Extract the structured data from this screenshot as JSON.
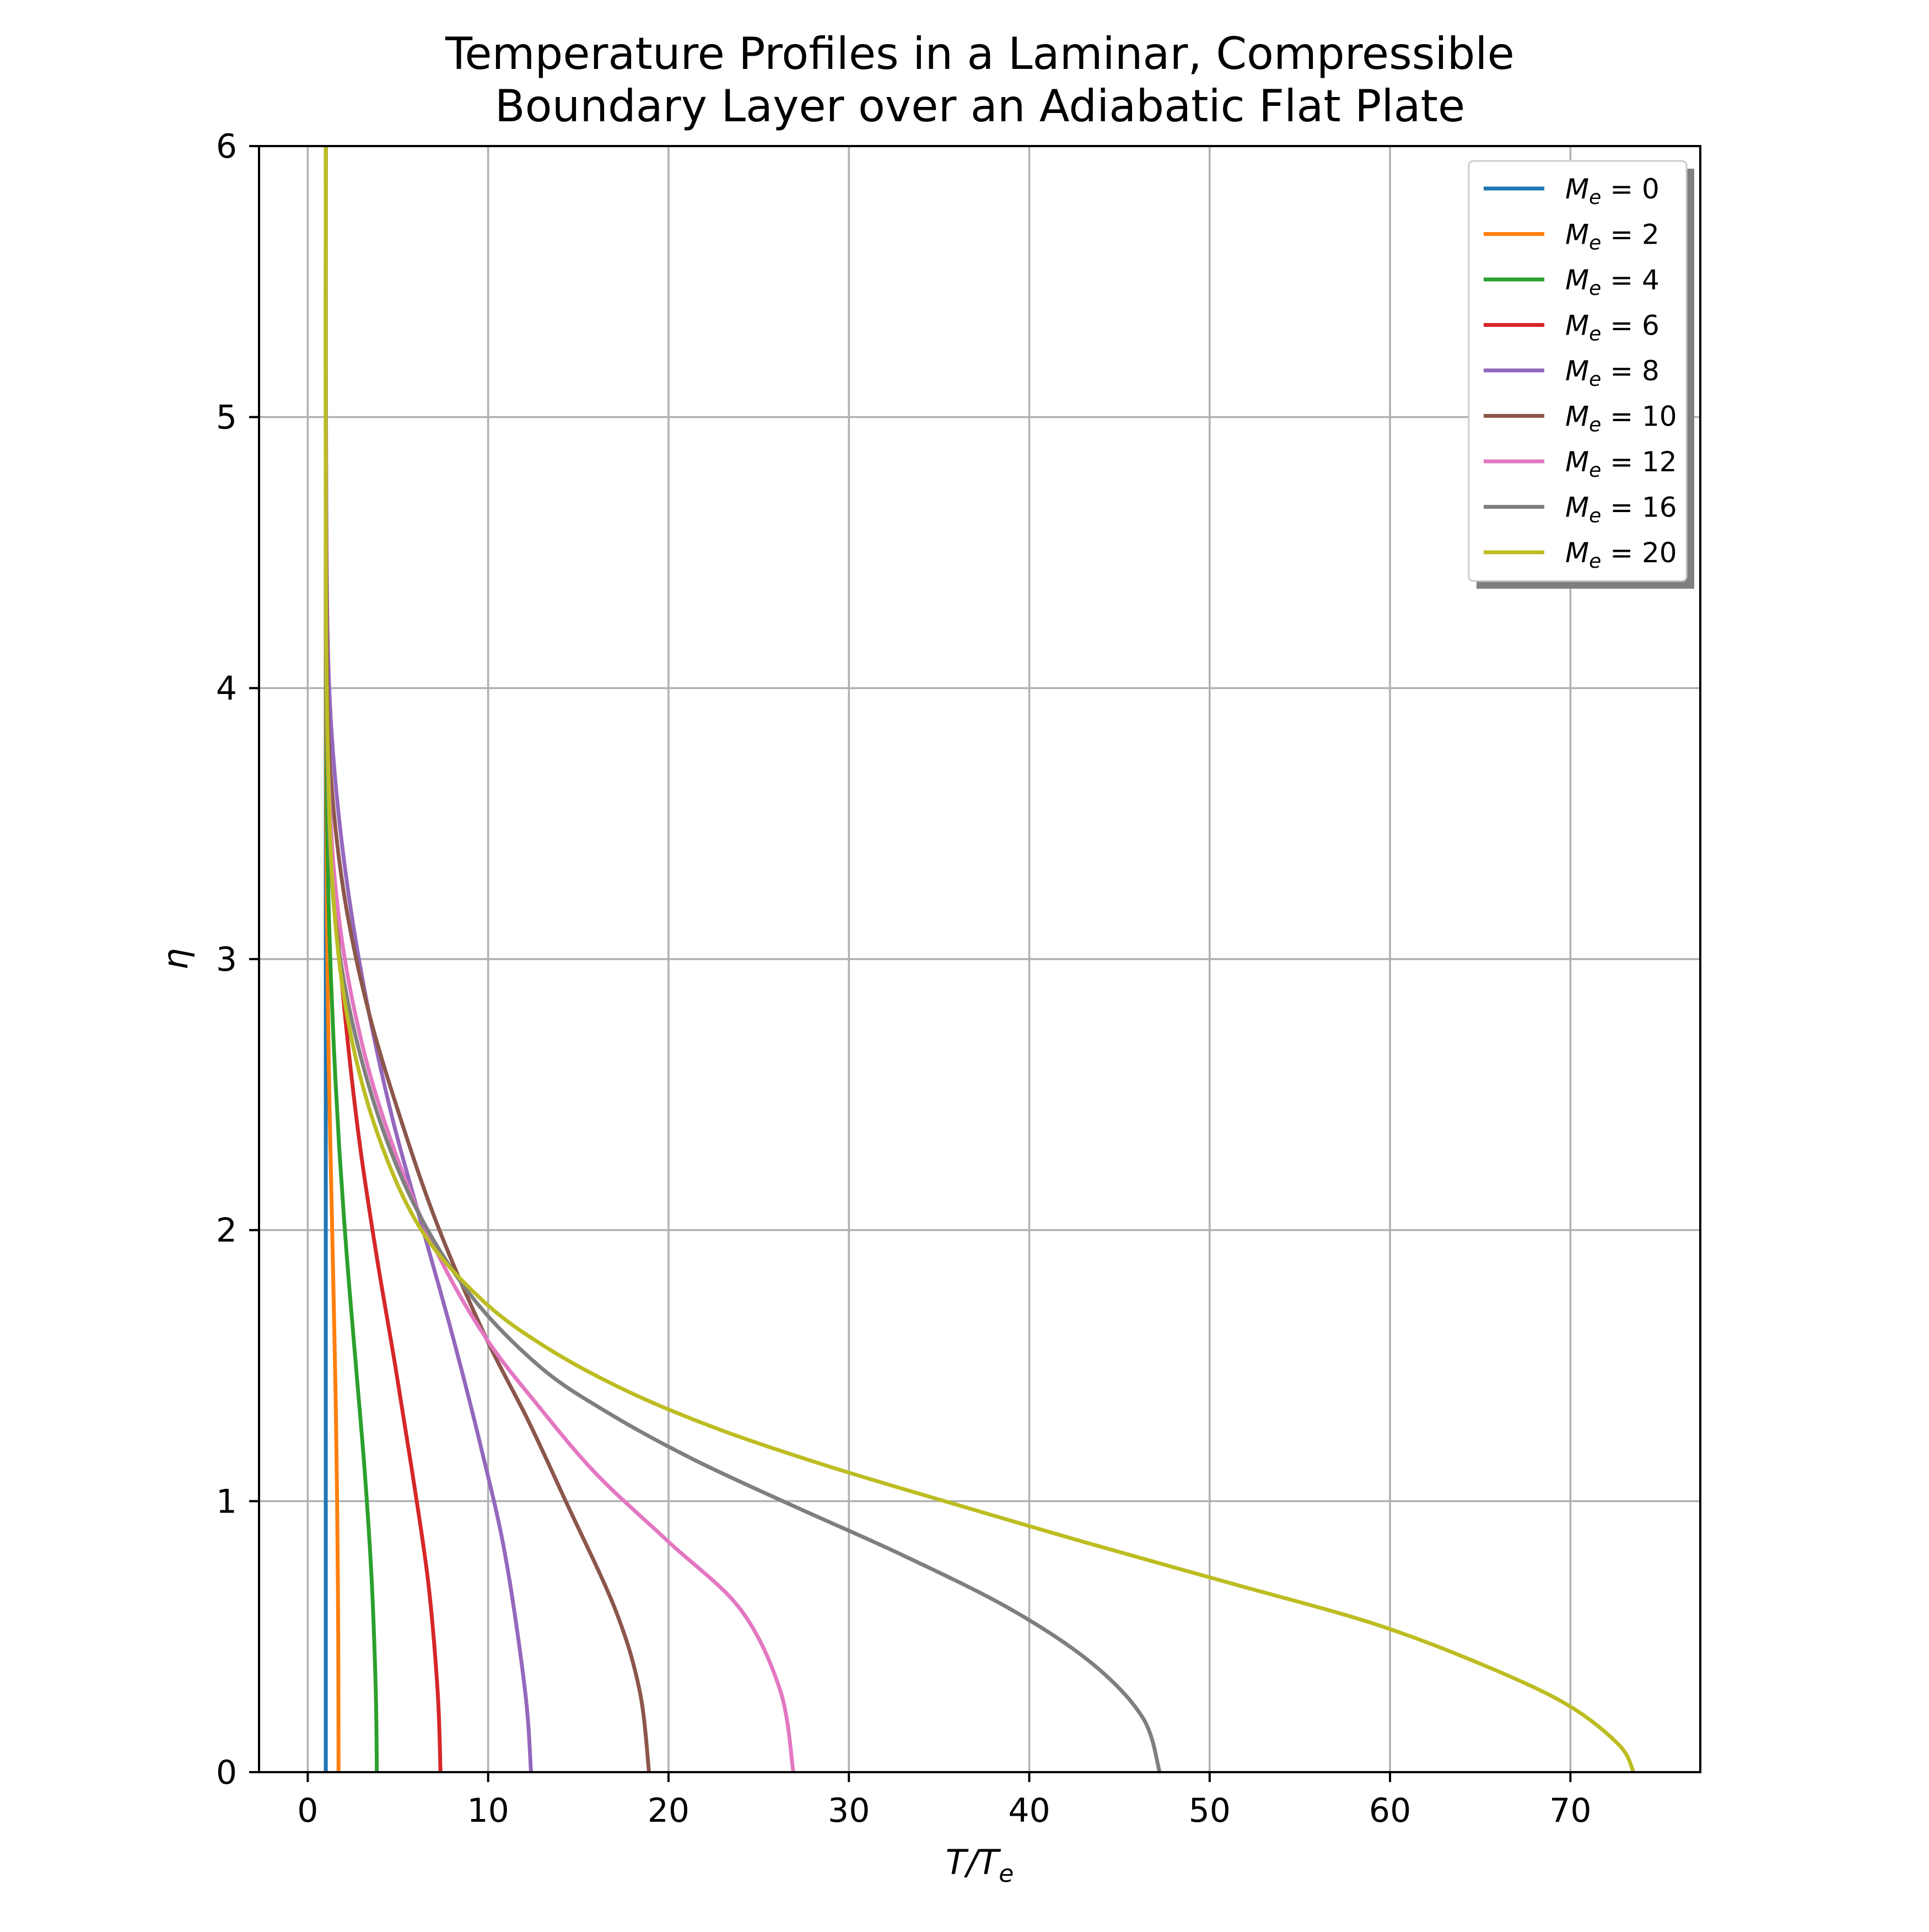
{
  "chart_data": {
    "type": "line",
    "title": "Temperature Profiles in a Laminar, Compressible\nBoundary Layer over an Adiabatic Flat Plate",
    "xlabel": "T/T_e",
    "ylabel": "η",
    "xlim": [
      -2.7,
      77.2
    ],
    "ylim": [
      0,
      6
    ],
    "xticks": [
      0,
      10,
      20,
      30,
      40,
      50,
      60,
      70
    ],
    "yticks": [
      0,
      1,
      2,
      3,
      4,
      5,
      6
    ],
    "grid": true,
    "legend_position": "upper right",
    "series": [
      {
        "name": "M_e = 0",
        "color": "#1f77b4",
        "x": [
          1.0,
          1.0,
          1.0,
          1.0,
          1.0,
          1.0,
          1.0,
          1.0,
          1.0,
          1.0
        ],
        "y": [
          0,
          0.5,
          1.0,
          1.5,
          2.0,
          2.5,
          3.0,
          4.0,
          5.0,
          6.0
        ]
      },
      {
        "name": "M_e = 2",
        "color": "#ff7f0e",
        "x": [
          1.71,
          1.69,
          1.63,
          1.54,
          1.42,
          1.29,
          1.17,
          1.09,
          1.04,
          1.01,
          1.0,
          1.0,
          1.0
        ],
        "y": [
          0,
          0.5,
          1.0,
          1.4,
          1.8,
          2.2,
          2.6,
          3.0,
          3.4,
          3.8,
          4.5,
          5.2,
          6.0
        ]
      },
      {
        "name": "M_e = 4",
        "color": "#2ca02c",
        "x": [
          3.83,
          3.77,
          3.55,
          3.17,
          2.67,
          2.17,
          1.75,
          1.43,
          1.2,
          1.07,
          1.02,
          1.0,
          1.0
        ],
        "y": [
          0,
          0.3,
          0.7,
          1.1,
          1.5,
          1.9,
          2.3,
          2.7,
          3.1,
          3.5,
          4.0,
          5.0,
          6.0
        ]
      },
      {
        "name": "M_e = 6",
        "color": "#d62728",
        "x": [
          7.36,
          7.2,
          6.68,
          5.81,
          4.85,
          3.83,
          2.92,
          2.21,
          1.65,
          1.26,
          1.07,
          1.01,
          1.0,
          1.0
        ],
        "y": [
          0,
          0.3,
          0.7,
          1.1,
          1.5,
          1.9,
          2.3,
          2.7,
          3.1,
          3.5,
          3.9,
          4.4,
          5.2,
          6.0
        ]
      },
      {
        "name": "M_e = 8",
        "color": "#9467bd",
        "x": [
          12.38,
          12.05,
          10.95,
          9.6,
          8.07,
          6.4,
          4.74,
          3.4,
          2.35,
          1.61,
          1.19,
          1.04,
          1.0,
          1.0
        ],
        "y": [
          0,
          0.3,
          0.8,
          1.2,
          1.6,
          2.0,
          2.4,
          2.8,
          3.2,
          3.6,
          4.0,
          4.5,
          5.2,
          6.0
        ]
      },
      {
        "name": "M_e = 10",
        "color": "#8c564b",
        "x": [
          18.92,
          18.4,
          17.05,
          14.3,
          12.2,
          9.9,
          7.3,
          5.2,
          3.4,
          2.11,
          1.37,
          1.09,
          1.0,
          1.0
        ],
        "y": [
          0,
          0.3,
          0.6,
          1.0,
          1.3,
          1.6,
          2.0,
          2.4,
          2.8,
          3.2,
          3.6,
          4.0,
          5.0,
          6.0
        ]
      },
      {
        "name": "M_e = 12",
        "color": "#e377c2",
        "x": [
          26.92,
          26.2,
          24.0,
          20.0,
          16.0,
          12.8,
          9.9,
          7.3,
          5.05,
          3.15,
          1.83,
          1.2,
          1.02,
          1.0
        ],
        "y": [
          0,
          0.3,
          0.6,
          0.85,
          1.1,
          1.35,
          1.6,
          1.9,
          2.25,
          2.65,
          3.1,
          3.6,
          4.3,
          6.0
        ]
      },
      {
        "name": "M_e = 16",
        "color": "#7f7f7f",
        "x": [
          47.23,
          46.3,
          43.5,
          39.0,
          33.0,
          27.0,
          21.5,
          16.8,
          12.8,
          8.8,
          5.5,
          3.1,
          1.6,
          1.1,
          1.0,
          1.0
        ],
        "y": [
          0,
          0.2,
          0.4,
          0.6,
          0.8,
          0.98,
          1.15,
          1.32,
          1.5,
          1.78,
          2.15,
          2.6,
          3.1,
          3.7,
          4.5,
          6.0
        ]
      },
      {
        "name": "M_e = 20",
        "color": "#bcbd22",
        "x": [
          73.5,
          72.7,
          69.8,
          65.0,
          59.0,
          51.0,
          43.0,
          35.3,
          28.8,
          23.0,
          17.9,
          13.4,
          9.7,
          6.3,
          3.9,
          2.3,
          1.45,
          1.1,
          1.0,
          1.0
        ],
        "y": [
          0,
          0.1,
          0.25,
          0.4,
          0.55,
          0.7,
          0.85,
          1.0,
          1.13,
          1.26,
          1.4,
          1.56,
          1.74,
          2.0,
          2.35,
          2.75,
          3.2,
          3.8,
          4.6,
          6.0
        ]
      }
    ]
  }
}
